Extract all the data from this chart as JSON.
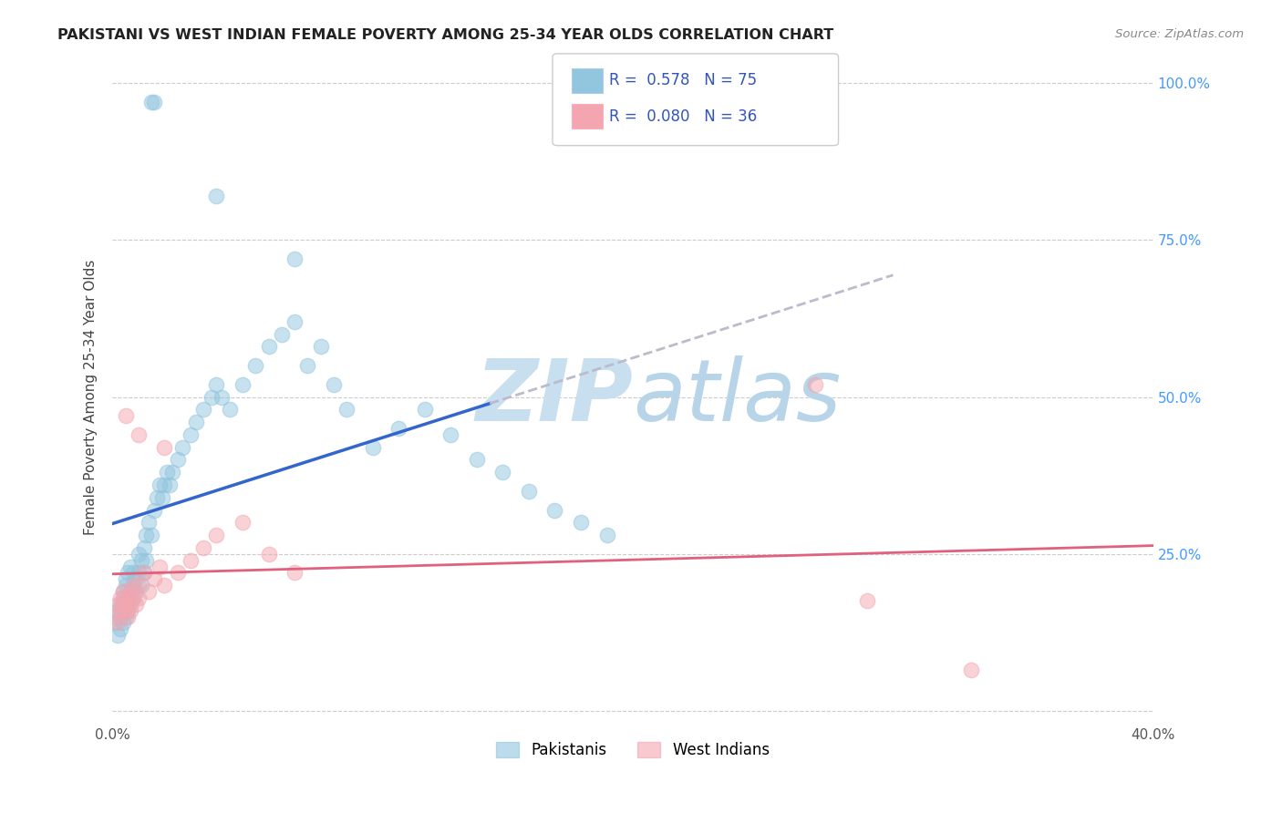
{
  "title": "PAKISTANI VS WEST INDIAN FEMALE POVERTY AMONG 25-34 YEAR OLDS CORRELATION CHART",
  "source": "Source: ZipAtlas.com",
  "ylabel_label": "Female Poverty Among 25-34 Year Olds",
  "r_pakistani": 0.578,
  "n_pakistani": 75,
  "r_westindian": 0.08,
  "n_westindian": 36,
  "color_pakistani": "#92c5de",
  "color_westindian": "#f4a6b0",
  "color_line_pakistani": "#3366cc",
  "color_line_westindian": "#e0607e",
  "background_color": "#ffffff",
  "grid_color": "#cccccc",
  "watermark_color": "#c8dff0",
  "xlim": [
    0.0,
    0.4
  ],
  "ylim": [
    -0.02,
    1.02
  ],
  "x_pak": [
    0.001,
    0.002,
    0.002,
    0.003,
    0.003,
    0.003,
    0.004,
    0.004,
    0.004,
    0.004,
    0.005,
    0.005,
    0.005,
    0.005,
    0.006,
    0.006,
    0.006,
    0.007,
    0.007,
    0.007,
    0.008,
    0.008,
    0.008,
    0.009,
    0.009,
    0.01,
    0.01,
    0.011,
    0.011,
    0.012,
    0.012,
    0.013,
    0.013,
    0.014,
    0.015,
    0.016,
    0.017,
    0.018,
    0.019,
    0.02,
    0.021,
    0.022,
    0.023,
    0.025,
    0.027,
    0.03,
    0.032,
    0.035,
    0.038,
    0.04,
    0.042,
    0.045,
    0.05,
    0.055,
    0.06,
    0.065,
    0.07,
    0.075,
    0.08,
    0.085,
    0.09,
    0.1,
    0.11,
    0.12,
    0.13,
    0.14,
    0.15,
    0.16,
    0.17,
    0.18,
    0.19,
    0.015,
    0.016,
    0.04,
    0.07
  ],
  "y_pak": [
    0.14,
    0.16,
    0.12,
    0.17,
    0.13,
    0.15,
    0.18,
    0.14,
    0.16,
    0.19,
    0.2,
    0.15,
    0.17,
    0.21,
    0.16,
    0.18,
    0.22,
    0.17,
    0.19,
    0.23,
    0.2,
    0.18,
    0.22,
    0.21,
    0.19,
    0.22,
    0.25,
    0.24,
    0.2,
    0.26,
    0.22,
    0.28,
    0.24,
    0.3,
    0.28,
    0.32,
    0.34,
    0.36,
    0.34,
    0.36,
    0.38,
    0.36,
    0.38,
    0.4,
    0.42,
    0.44,
    0.46,
    0.48,
    0.5,
    0.52,
    0.5,
    0.48,
    0.52,
    0.55,
    0.58,
    0.6,
    0.62,
    0.55,
    0.58,
    0.52,
    0.48,
    0.42,
    0.45,
    0.48,
    0.44,
    0.4,
    0.38,
    0.35,
    0.32,
    0.3,
    0.28,
    0.97,
    0.97,
    0.82,
    0.72
  ],
  "x_wi": [
    0.001,
    0.002,
    0.002,
    0.003,
    0.003,
    0.004,
    0.004,
    0.005,
    0.005,
    0.006,
    0.006,
    0.007,
    0.007,
    0.008,
    0.008,
    0.009,
    0.01,
    0.01,
    0.012,
    0.014,
    0.016,
    0.018,
    0.02,
    0.025,
    0.03,
    0.035,
    0.04,
    0.05,
    0.06,
    0.07,
    0.27,
    0.29,
    0.33,
    0.005,
    0.01,
    0.02
  ],
  "y_wi": [
    0.15,
    0.17,
    0.14,
    0.16,
    0.18,
    0.17,
    0.19,
    0.16,
    0.18,
    0.15,
    0.17,
    0.19,
    0.16,
    0.18,
    0.2,
    0.17,
    0.18,
    0.2,
    0.22,
    0.19,
    0.21,
    0.23,
    0.2,
    0.22,
    0.24,
    0.26,
    0.28,
    0.3,
    0.25,
    0.22,
    0.52,
    0.175,
    0.065,
    0.47,
    0.44,
    0.42
  ]
}
